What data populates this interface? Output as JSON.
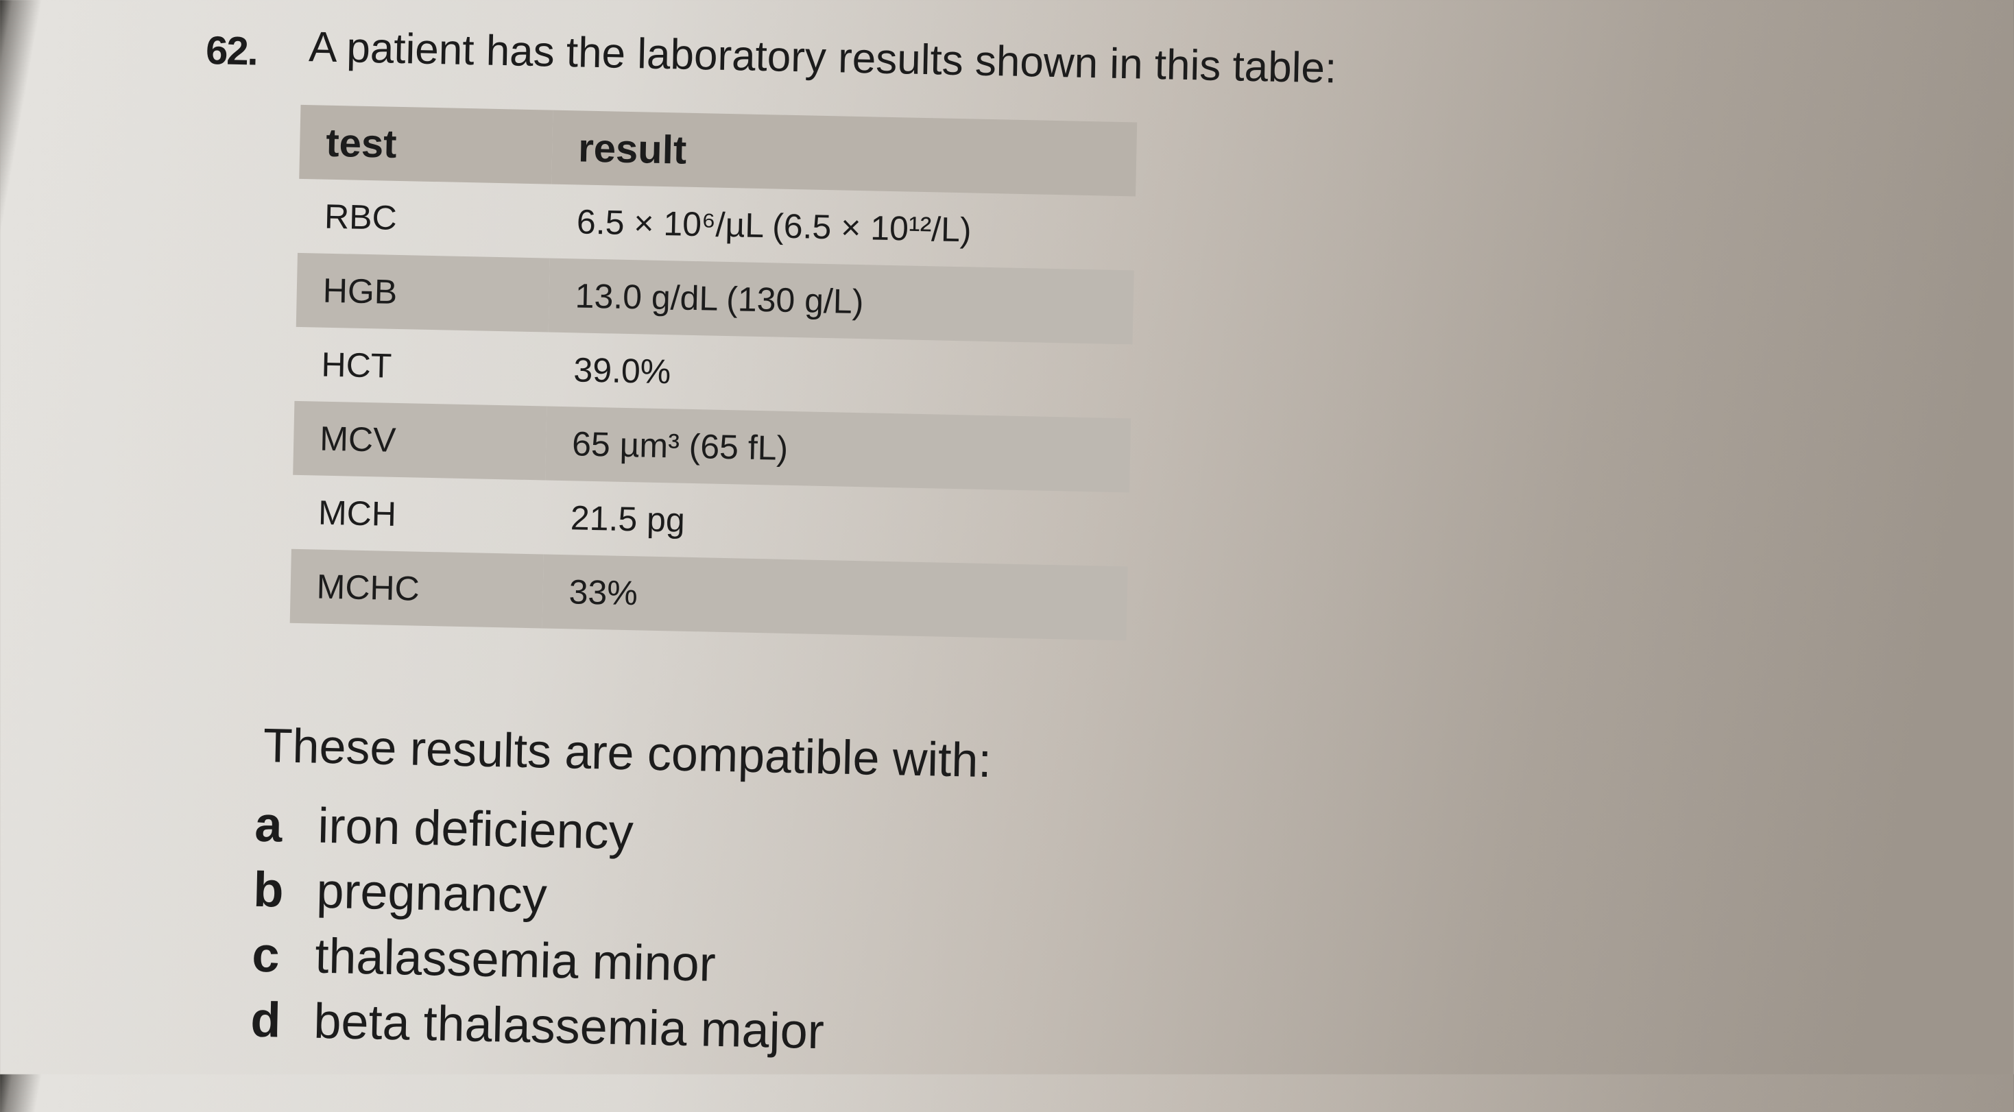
{
  "question": {
    "number": "62.",
    "stem": "A patient has the laboratory results shown in this table:"
  },
  "table": {
    "header": [
      "test",
      "result"
    ],
    "rows": [
      [
        "RBC",
        "6.5 × 10⁶/µL (6.5 × 10¹²/L)"
      ],
      [
        "HGB",
        "13.0 g/dL (130 g/L)"
      ],
      [
        "HCT",
        "39.0%"
      ],
      [
        "MCV",
        "65 µm³ (65 fL)"
      ],
      [
        "MCH",
        "21.5 pg"
      ],
      [
        "MCHC",
        "33%"
      ]
    ]
  },
  "lead": "These results are compatible with:",
  "options": [
    {
      "letter": "a",
      "text": "iron deficiency"
    },
    {
      "letter": "b",
      "text": "pregnancy"
    },
    {
      "letter": "c",
      "text": "thalassemia minor"
    },
    {
      "letter": "d",
      "text": "beta thalassemia major"
    }
  ]
}
